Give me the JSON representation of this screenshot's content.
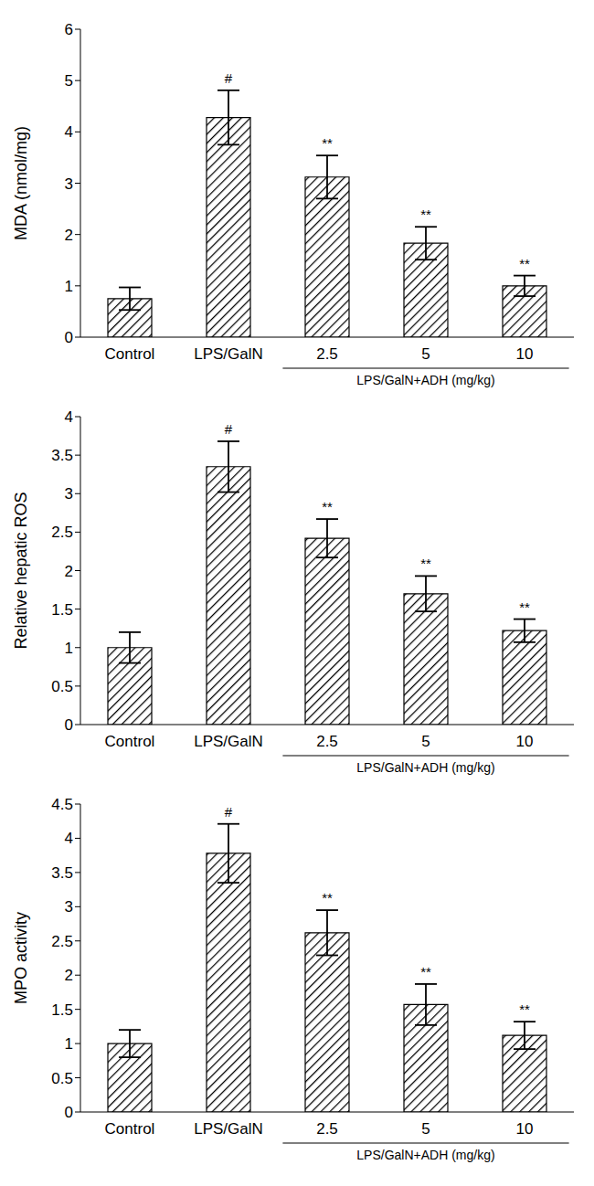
{
  "chart_data": [
    {
      "type": "bar",
      "ylabel": "MDA (nmol/mg)",
      "categories": [
        "Control",
        "LPS/GalN",
        "2.5",
        "5",
        "10"
      ],
      "values": [
        0.75,
        4.28,
        3.12,
        1.83,
        1.0
      ],
      "errors": [
        0.22,
        0.53,
        0.42,
        0.32,
        0.2
      ],
      "annotations": [
        null,
        "#",
        "**",
        "**",
        "**"
      ],
      "group_label": "LPS/GalN+ADH (mg/kg)",
      "color": "#000000",
      "ylim": [
        0,
        6
      ],
      "yticks": [
        0,
        1,
        2,
        3,
        4,
        5,
        6
      ],
      "grid": false
    },
    {
      "type": "bar",
      "ylabel": "Relative hepatic ROS",
      "categories": [
        "Control",
        "LPS/GalN",
        "2.5",
        "5",
        "10"
      ],
      "values": [
        1.0,
        3.35,
        2.42,
        1.7,
        1.22
      ],
      "errors": [
        0.2,
        0.33,
        0.25,
        0.23,
        0.15
      ],
      "annotations": [
        null,
        "#",
        "**",
        "**",
        "**"
      ],
      "group_label": "LPS/GalN+ADH (mg/kg)",
      "color": "#000000",
      "ylim": [
        0,
        4
      ],
      "yticks": [
        0,
        0.5,
        1,
        1.5,
        2,
        2.5,
        3,
        3.5,
        4
      ],
      "grid": false
    },
    {
      "type": "bar",
      "ylabel": "MPO activity",
      "categories": [
        "Control",
        "LPS/GalN",
        "2.5",
        "5",
        "10"
      ],
      "values": [
        1.0,
        3.78,
        2.62,
        1.57,
        1.12
      ],
      "errors": [
        0.2,
        0.43,
        0.33,
        0.3,
        0.2
      ],
      "annotations": [
        null,
        "#",
        "**",
        "**",
        "**"
      ],
      "group_label": "LPS/GalN+ADH (mg/kg)",
      "color": "#000000",
      "ylim": [
        0,
        4.5
      ],
      "yticks": [
        0,
        0.5,
        1,
        1.5,
        2,
        2.5,
        3,
        3.5,
        4,
        4.5
      ],
      "grid": false
    }
  ]
}
